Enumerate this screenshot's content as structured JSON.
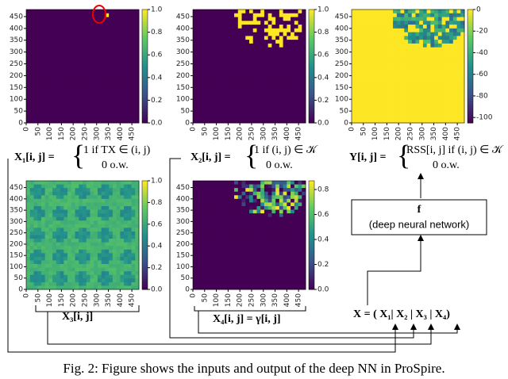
{
  "panels": [
    {
      "id": "X1",
      "xlim": [
        0,
        480
      ],
      "ylim": [
        0,
        480
      ],
      "xticks": [
        0,
        50,
        100,
        150,
        200,
        250,
        300,
        350,
        400,
        450
      ],
      "yticks": [
        0,
        50,
        100,
        150,
        200,
        250,
        300,
        350,
        400,
        450
      ],
      "clim": [
        0,
        1
      ],
      "cticks": [
        {
          "value": 0,
          "label": "0.0"
        },
        {
          "value": 0.2,
          "label": "0.2"
        },
        {
          "value": 0.4,
          "label": "0.4"
        },
        {
          "value": 0.6,
          "label": "0.6"
        },
        {
          "value": 0.8,
          "label": "0.8"
        },
        {
          "value": 1,
          "label": "1.0"
        }
      ]
    },
    {
      "id": "X2",
      "xlim": [
        0,
        480
      ],
      "ylim": [
        0,
        480
      ],
      "xticks": [
        0,
        50,
        100,
        150,
        200,
        250,
        300,
        350,
        400,
        450
      ],
      "yticks": [
        0,
        50,
        100,
        150,
        200,
        250,
        300,
        350,
        400,
        450
      ],
      "clim": [
        0,
        1
      ],
      "cticks": [
        {
          "value": 0,
          "label": "0.0"
        },
        {
          "value": 0.2,
          "label": "0.2"
        },
        {
          "value": 0.4,
          "label": "0.4"
        },
        {
          "value": 0.6,
          "label": "0.6"
        },
        {
          "value": 0.8,
          "label": "0.8"
        },
        {
          "value": 1,
          "label": "1.0"
        }
      ]
    },
    {
      "id": "Y",
      "xlim": [
        0,
        480
      ],
      "ylim": [
        0,
        480
      ],
      "xticks": [
        0,
        50,
        100,
        150,
        200,
        250,
        300,
        350,
        400,
        450
      ],
      "yticks": [
        0,
        50,
        100,
        150,
        200,
        250,
        300,
        350,
        400,
        450
      ],
      "clim": [
        -105,
        0
      ],
      "cticks": [
        0,
        -20,
        -40,
        -60,
        -80,
        -100
      ]
    },
    {
      "id": "X3",
      "xlim": [
        0,
        480
      ],
      "ylim": [
        0,
        480
      ],
      "xticks": [
        0,
        50,
        100,
        150,
        200,
        250,
        300,
        350,
        400,
        450
      ],
      "yticks": [
        0,
        50,
        100,
        150,
        200,
        250,
        300,
        350,
        400,
        450
      ],
      "clim": [
        0,
        1
      ],
      "cticks": [
        {
          "value": 0,
          "label": "0.0"
        },
        {
          "value": 0.2,
          "label": "0.2"
        },
        {
          "value": 0.4,
          "label": "0.4"
        },
        {
          "value": 0.6,
          "label": "0.6"
        },
        {
          "value": 0.8,
          "label": "0.8"
        },
        {
          "value": 1,
          "label": "1.0"
        }
      ]
    },
    {
      "id": "X4",
      "xlim": [
        0,
        480
      ],
      "ylim": [
        0,
        480
      ],
      "xticks": [
        0,
        50,
        100,
        150,
        200,
        250,
        300,
        350,
        400,
        450
      ],
      "yticks": [
        0,
        50,
        100,
        150,
        200,
        250,
        300,
        350,
        400,
        450
      ],
      "clim": [
        0,
        0.87
      ],
      "cticks": [
        {
          "value": 0,
          "label": "0.0"
        },
        {
          "value": 0.2,
          "label": "0.2"
        },
        {
          "value": 0.4,
          "label": "0.4"
        },
        {
          "value": 0.6,
          "label": "0.6"
        },
        {
          "value": 0.8,
          "label": "0.8"
        }
      ]
    }
  ],
  "equations": {
    "x1": {
      "lhs": "X₁[i, j] =",
      "cases": [
        "1 if TX ∈ (i, j)",
        "0 o.w."
      ]
    },
    "x2": {
      "lhs": "X₂[i, j] =",
      "cases": [
        "1 if (i, j)  ∈ 𝒦",
        "0 o.w."
      ]
    },
    "y": {
      "lhs": "Y[i, j] =",
      "cases": [
        "RSS[i, j] if (i, j)  ∈ 𝒦",
        "0 o.w."
      ]
    },
    "x3": "X₃[i, j]",
    "x4": "X₄[i, j] = γ[i, j]",
    "x": "X = ( X₁| X₂ | X₃ | X₄)"
  },
  "network": {
    "name": "f",
    "label": "(deep neural network)"
  },
  "caption": "Fig. 2: Figure shows the inputs and output of the deep NN in ProSpire."
}
